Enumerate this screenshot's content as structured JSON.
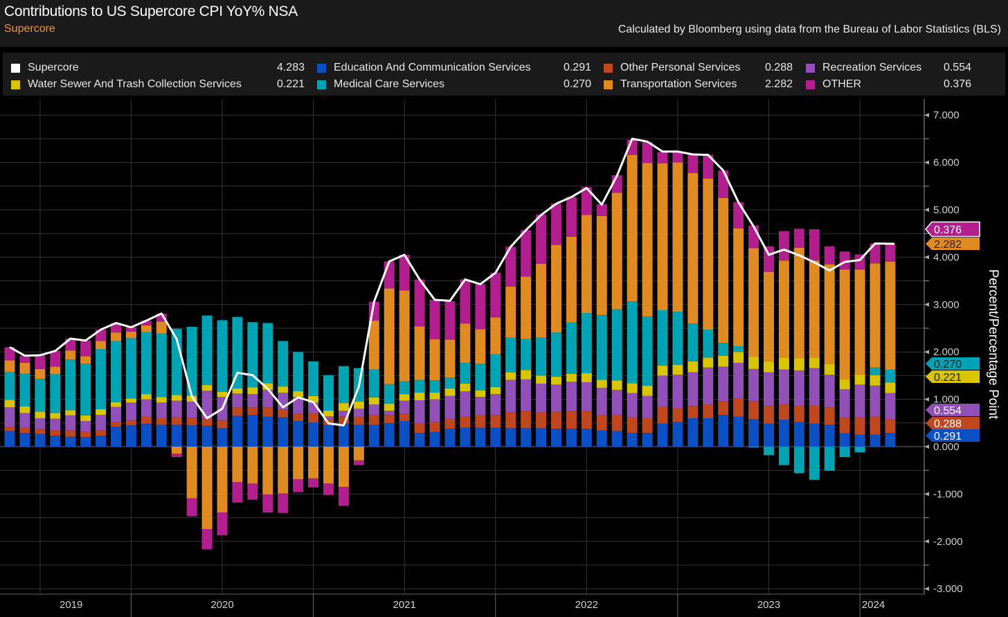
{
  "header": {
    "title": "Contributions to US Supercore CPI YoY% NSA",
    "subtitle": "Supercore",
    "source": "Calculated by Bloomberg using data from the Bureau of Labor Statistics (BLS)"
  },
  "legend": [
    {
      "label": "Supercore",
      "value": "4.283",
      "color": "#ffffff"
    },
    {
      "label": "Education And Communication Services",
      "value": "0.291",
      "color": "#0a4fc4"
    },
    {
      "label": "Other Personal Services",
      "value": "0.288",
      "color": "#c0461d"
    },
    {
      "label": "Recreation Services",
      "value": "0.554",
      "color": "#9150b8"
    },
    {
      "label": "Water Sewer And Trash Collection Services",
      "value": "0.221",
      "color": "#d9c400"
    },
    {
      "label": "Medical Care Services",
      "value": "0.270",
      "color": "#00a3b4"
    },
    {
      "label": "Transportation Services",
      "value": "2.282",
      "color": "#e08a22"
    },
    {
      "label": "OTHER",
      "value": "0.376",
      "color": "#b21e8e"
    }
  ],
  "chart_data": {
    "type": "bar",
    "stacked": true,
    "title": "Contributions to US Supercore CPI YoY% NSA",
    "ylabel": "Percent/Percentage Point",
    "ylim": [
      -3,
      7
    ],
    "yticks": [
      "7.000",
      "6.000",
      "5.000",
      "4.000",
      "3.000",
      "2.000",
      "1.000",
      "0.000",
      "-1.000",
      "-2.000",
      "-3.000"
    ],
    "ytick_values": [
      7,
      6,
      5,
      4,
      3,
      2,
      1,
      0,
      -1,
      -2,
      -3
    ],
    "year_labels": [
      "2019",
      "2020",
      "2021",
      "2022",
      "2023",
      "2024"
    ],
    "grid": true,
    "categories": [
      "2019-05",
      "2019-06",
      "2019-07",
      "2019-08",
      "2019-09",
      "2019-10",
      "2019-11",
      "2019-12",
      "2020-01",
      "2020-02",
      "2020-03",
      "2020-04",
      "2020-05",
      "2020-06",
      "2020-07",
      "2020-08",
      "2020-09",
      "2020-10",
      "2020-11",
      "2020-12",
      "2021-01",
      "2021-02",
      "2021-03",
      "2021-04",
      "2021-05",
      "2021-06",
      "2021-07",
      "2021-08",
      "2021-09",
      "2021-10",
      "2021-11",
      "2021-12",
      "2022-01",
      "2022-02",
      "2022-03",
      "2022-04",
      "2022-05",
      "2022-06",
      "2022-07",
      "2022-08",
      "2022-09",
      "2022-10",
      "2022-11",
      "2022-12",
      "2023-01",
      "2023-02",
      "2023-03",
      "2023-04",
      "2023-05",
      "2023-06",
      "2023-07",
      "2023-08",
      "2023-09",
      "2023-10",
      "2023-11",
      "2023-12",
      "2024-01",
      "2024-02",
      "2024-03"
    ],
    "line": {
      "name": "Supercore",
      "color": "#ffffff",
      "values": [
        2.1,
        1.92,
        1.93,
        2.02,
        2.28,
        2.24,
        2.47,
        2.61,
        2.52,
        2.66,
        2.81,
        2.27,
        1.06,
        0.6,
        0.8,
        1.56,
        1.51,
        1.22,
        0.83,
        1.04,
        0.94,
        0.49,
        0.45,
        1.27,
        3.06,
        3.91,
        4.05,
        3.53,
        3.1,
        3.08,
        3.53,
        3.43,
        3.67,
        4.22,
        4.57,
        4.89,
        5.13,
        5.27,
        5.46,
        5.11,
        5.72,
        6.5,
        6.44,
        6.23,
        6.23,
        6.17,
        6.16,
        5.83,
        5.16,
        4.65,
        4.05,
        4.16,
        4.04,
        3.89,
        3.72,
        3.9,
        3.94,
        4.29,
        4.283
      ]
    },
    "series": [
      {
        "name": "Education And Communication Services",
        "color": "#0a4fc4",
        "values": [
          0.33,
          0.29,
          0.27,
          0.23,
          0.21,
          0.2,
          0.23,
          0.42,
          0.45,
          0.48,
          0.46,
          0.46,
          0.45,
          0.44,
          0.39,
          0.65,
          0.67,
          0.63,
          0.62,
          0.54,
          0.51,
          0.46,
          0.49,
          0.46,
          0.46,
          0.5,
          0.54,
          0.29,
          0.31,
          0.38,
          0.4,
          0.4,
          0.4,
          0.39,
          0.39,
          0.39,
          0.38,
          0.38,
          0.38,
          0.34,
          0.33,
          0.29,
          0.29,
          0.49,
          0.52,
          0.6,
          0.6,
          0.67,
          0.63,
          0.58,
          0.49,
          0.57,
          0.52,
          0.49,
          0.46,
          0.28,
          0.25,
          0.25,
          0.291
        ]
      },
      {
        "name": "Other Personal Services",
        "color": "#c0461d",
        "values": [
          0.09,
          0.12,
          0.1,
          0.11,
          0.13,
          0.11,
          0.11,
          0.1,
          0.11,
          0.15,
          0.14,
          0.16,
          0.16,
          0.15,
          0.17,
          0.18,
          0.16,
          0.2,
          0.16,
          0.16,
          0.2,
          0.12,
          0.15,
          0.17,
          0.2,
          0.17,
          0.16,
          0.2,
          0.21,
          0.21,
          0.23,
          0.26,
          0.27,
          0.33,
          0.36,
          0.33,
          0.36,
          0.38,
          0.38,
          0.32,
          0.33,
          0.33,
          0.31,
          0.35,
          0.29,
          0.26,
          0.29,
          0.29,
          0.38,
          0.38,
          0.37,
          0.32,
          0.34,
          0.38,
          0.37,
          0.34,
          0.37,
          0.38,
          0.288
        ]
      },
      {
        "name": "Recreation Services",
        "color": "#9150b8",
        "values": [
          0.41,
          0.3,
          0.23,
          0.25,
          0.32,
          0.23,
          0.33,
          0.32,
          0.37,
          0.37,
          0.33,
          0.35,
          0.34,
          0.59,
          0.49,
          0.29,
          0.28,
          0.37,
          0.36,
          0.35,
          0.22,
          0.06,
          0.12,
          0.17,
          0.23,
          0.09,
          0.27,
          0.49,
          0.48,
          0.48,
          0.54,
          0.39,
          0.44,
          0.69,
          0.67,
          0.61,
          0.57,
          0.61,
          0.6,
          0.58,
          0.54,
          0.51,
          0.47,
          0.66,
          0.71,
          0.71,
          0.78,
          0.73,
          0.76,
          0.68,
          0.71,
          0.74,
          0.75,
          0.79,
          0.69,
          0.59,
          0.69,
          0.66,
          0.554
        ]
      },
      {
        "name": "Water Sewer And Trash Collection Services",
        "color": "#d9c400",
        "values": [
          0.16,
          0.14,
          0.14,
          0.12,
          0.11,
          0.12,
          0.12,
          0.1,
          0.09,
          0.11,
          0.12,
          0.12,
          0.13,
          0.12,
          0.11,
          0.11,
          0.14,
          0.14,
          0.13,
          0.12,
          0.14,
          0.12,
          0.16,
          0.15,
          0.15,
          0.15,
          0.14,
          0.16,
          0.14,
          0.16,
          0.16,
          0.14,
          0.15,
          0.16,
          0.2,
          0.17,
          0.17,
          0.17,
          0.19,
          0.17,
          0.2,
          0.21,
          0.22,
          0.21,
          0.21,
          0.23,
          0.21,
          0.23,
          0.23,
          0.26,
          0.23,
          0.25,
          0.26,
          0.22,
          0.23,
          0.22,
          0.21,
          0.22,
          0.221
        ]
      },
      {
        "name": "Medical Care Services",
        "color": "#00a3b4",
        "values": [
          0.59,
          0.69,
          0.69,
          0.82,
          1.07,
          1.09,
          1.27,
          1.29,
          1.27,
          1.31,
          1.34,
          1.4,
          1.45,
          1.47,
          1.51,
          1.51,
          1.38,
          1.27,
          0.96,
          0.83,
          0.73,
          0.75,
          0.78,
          0.71,
          0.59,
          0.41,
          0.27,
          0.27,
          0.26,
          0.23,
          0.44,
          0.56,
          0.69,
          0.73,
          0.65,
          0.8,
          0.93,
          1.08,
          1.27,
          1.37,
          1.5,
          1.73,
          1.46,
          1.17,
          1.12,
          0.8,
          0.59,
          0.27,
          0.12,
          -0.02,
          -0.18,
          -0.39,
          -0.56,
          -0.7,
          -0.51,
          -0.22,
          -0.12,
          0.16,
          0.27
        ]
      },
      {
        "name": "Transportation Services",
        "color": "#e08a22",
        "values": [
          0.24,
          0.23,
          0.21,
          0.16,
          0.19,
          0.16,
          0.17,
          0.18,
          0.14,
          0.14,
          0.25,
          -0.15,
          -1.09,
          -1.74,
          -1.39,
          -0.75,
          -0.78,
          -1.01,
          -0.99,
          -0.69,
          -0.67,
          -0.78,
          -0.85,
          -0.29,
          1.03,
          2.02,
          1.92,
          1.13,
          0.87,
          0.8,
          0.83,
          0.73,
          0.78,
          1.08,
          1.32,
          1.56,
          1.85,
          1.81,
          2.07,
          2.09,
          2.46,
          3.09,
          3.24,
          3.1,
          3.15,
          3.18,
          3.19,
          3.06,
          2.49,
          2.29,
          1.89,
          2.05,
          2.33,
          2.05,
          2.1,
          2.31,
          2.22,
          2.2,
          2.282
        ]
      },
      {
        "name": "OTHER",
        "color": "#b21e8e",
        "values": [
          0.28,
          0.15,
          0.29,
          0.33,
          0.25,
          0.33,
          0.24,
          0.2,
          0.09,
          0.1,
          0.17,
          -0.07,
          -0.38,
          -0.43,
          -0.48,
          -0.43,
          -0.34,
          -0.38,
          -0.41,
          -0.27,
          -0.19,
          -0.24,
          -0.4,
          -0.1,
          0.4,
          0.57,
          0.75,
          0.99,
          0.83,
          0.81,
          0.93,
          0.95,
          0.94,
          0.84,
          0.98,
          1.04,
          0.87,
          0.84,
          0.59,
          0.25,
          0.37,
          0.32,
          0.44,
          0.24,
          0.22,
          0.39,
          0.5,
          0.58,
          0.55,
          0.48,
          0.54,
          0.62,
          0.4,
          0.66,
          0.38,
          0.38,
          0.32,
          0.42,
          0.376
        ]
      }
    ],
    "last_value_tags": [
      {
        "label": "0.376",
        "color": "#b21e8e",
        "text_color": "#ffffff"
      },
      {
        "label": "2.282",
        "color": "#e08a22",
        "text_color": "#222222"
      },
      {
        "label": "0.270",
        "color": "#00a3b4",
        "text_color": "#222222"
      },
      {
        "label": "0.221",
        "color": "#d9c400",
        "text_color": "#222222"
      },
      {
        "label": "0.554",
        "color": "#9150b8",
        "text_color": "#ffffff"
      },
      {
        "label": "0.288",
        "color": "#c0461d",
        "text_color": "#ffffff"
      },
      {
        "label": "0.291",
        "color": "#0a4fc4",
        "text_color": "#ffffff"
      }
    ]
  }
}
